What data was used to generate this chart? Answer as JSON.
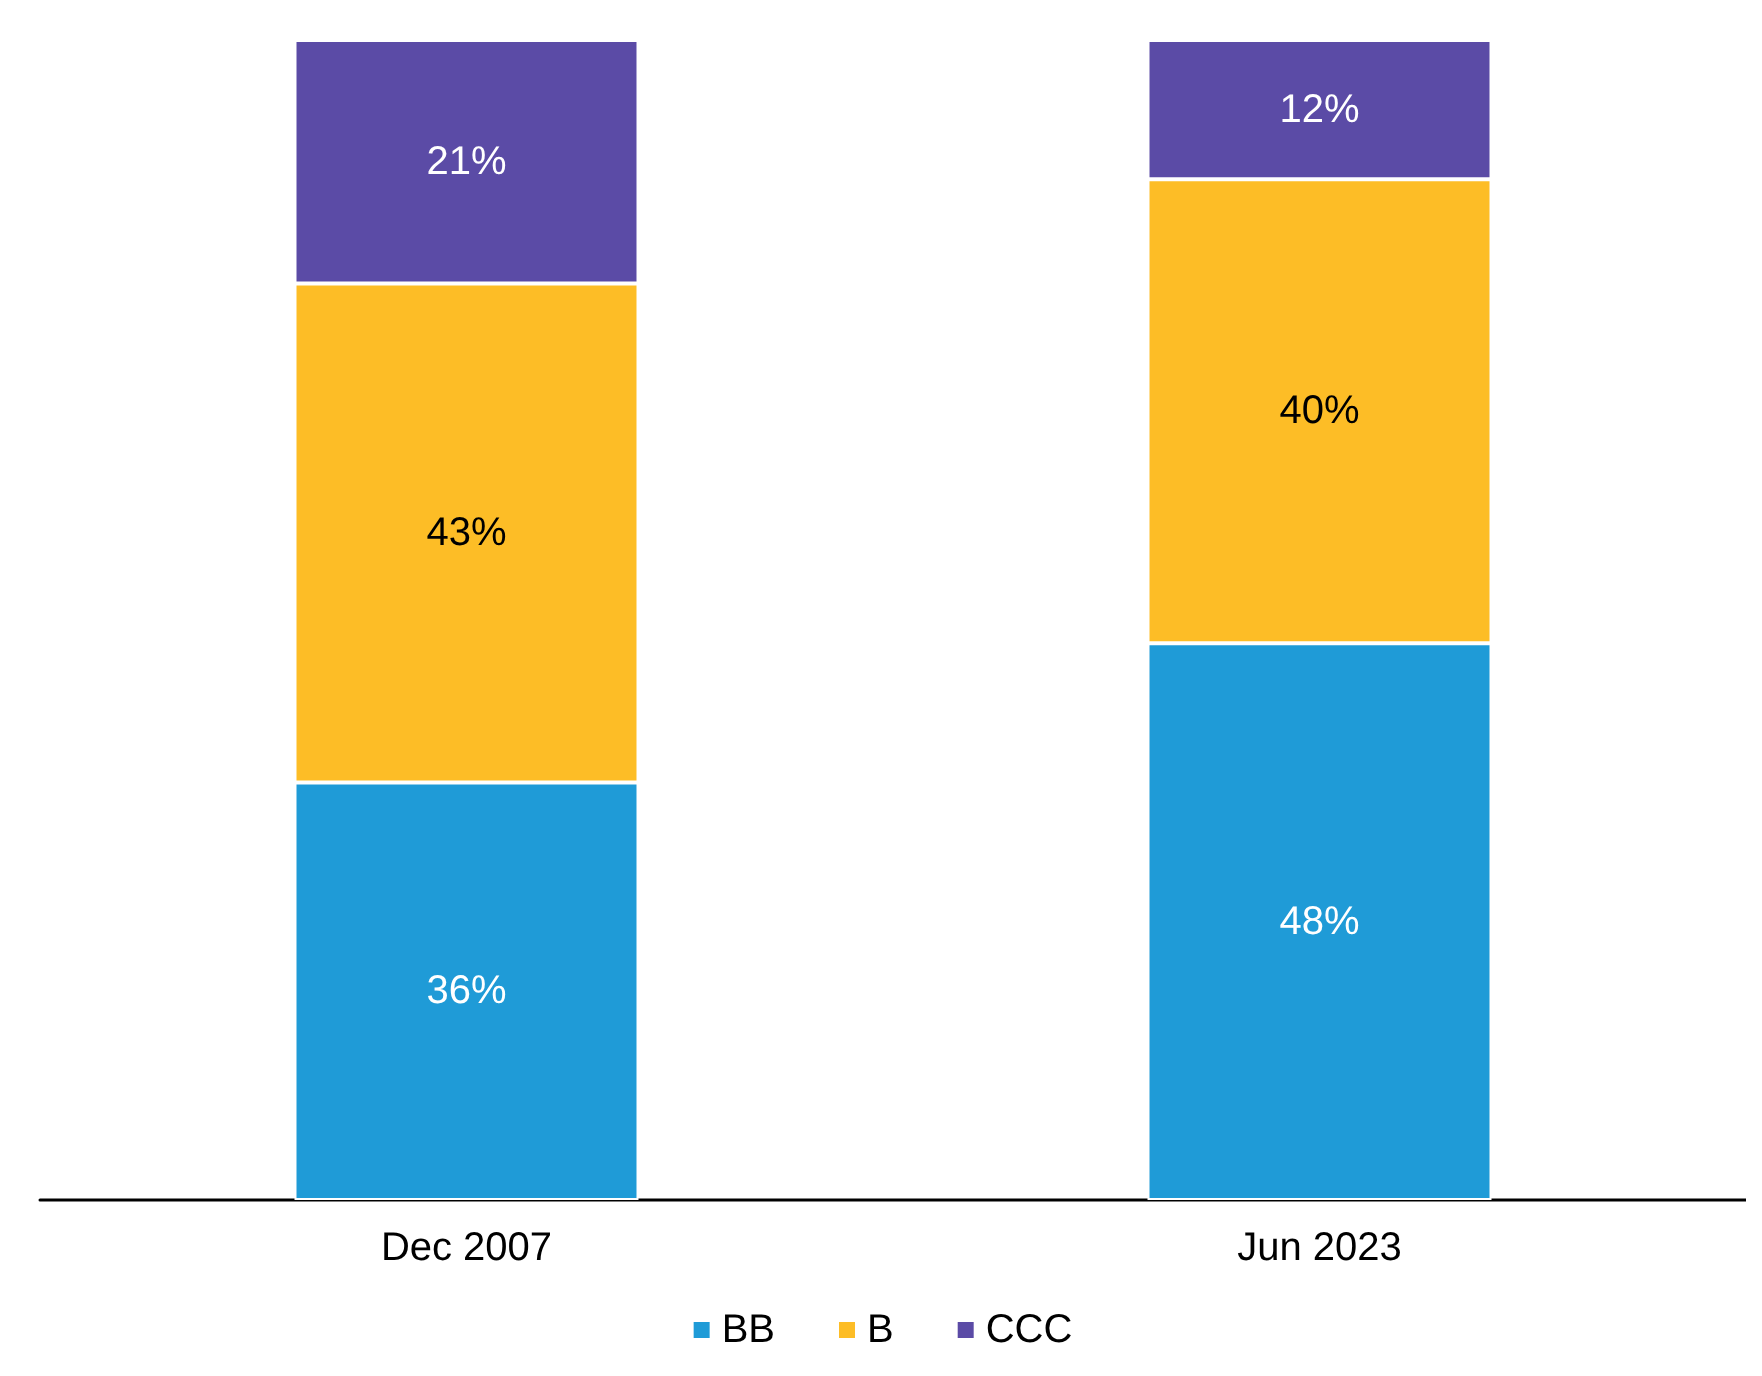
{
  "chart_data": {
    "type": "bar",
    "stacked": true,
    "categories": [
      "Dec 2007",
      "Jun 2023"
    ],
    "series": [
      {
        "name": "BB",
        "color": "#1f9bd7",
        "values": [
          36,
          48
        ],
        "value_labels": [
          "36%",
          "48%"
        ]
      },
      {
        "name": "B",
        "color": "#fdbd26",
        "values": [
          43,
          40
        ],
        "value_labels": [
          "43%",
          "40%"
        ]
      },
      {
        "name": "CCC",
        "color": "#5b4ba6",
        "values": [
          21,
          12
        ],
        "value_labels": [
          "21%",
          "12%"
        ]
      }
    ],
    "legend": "bottom"
  }
}
